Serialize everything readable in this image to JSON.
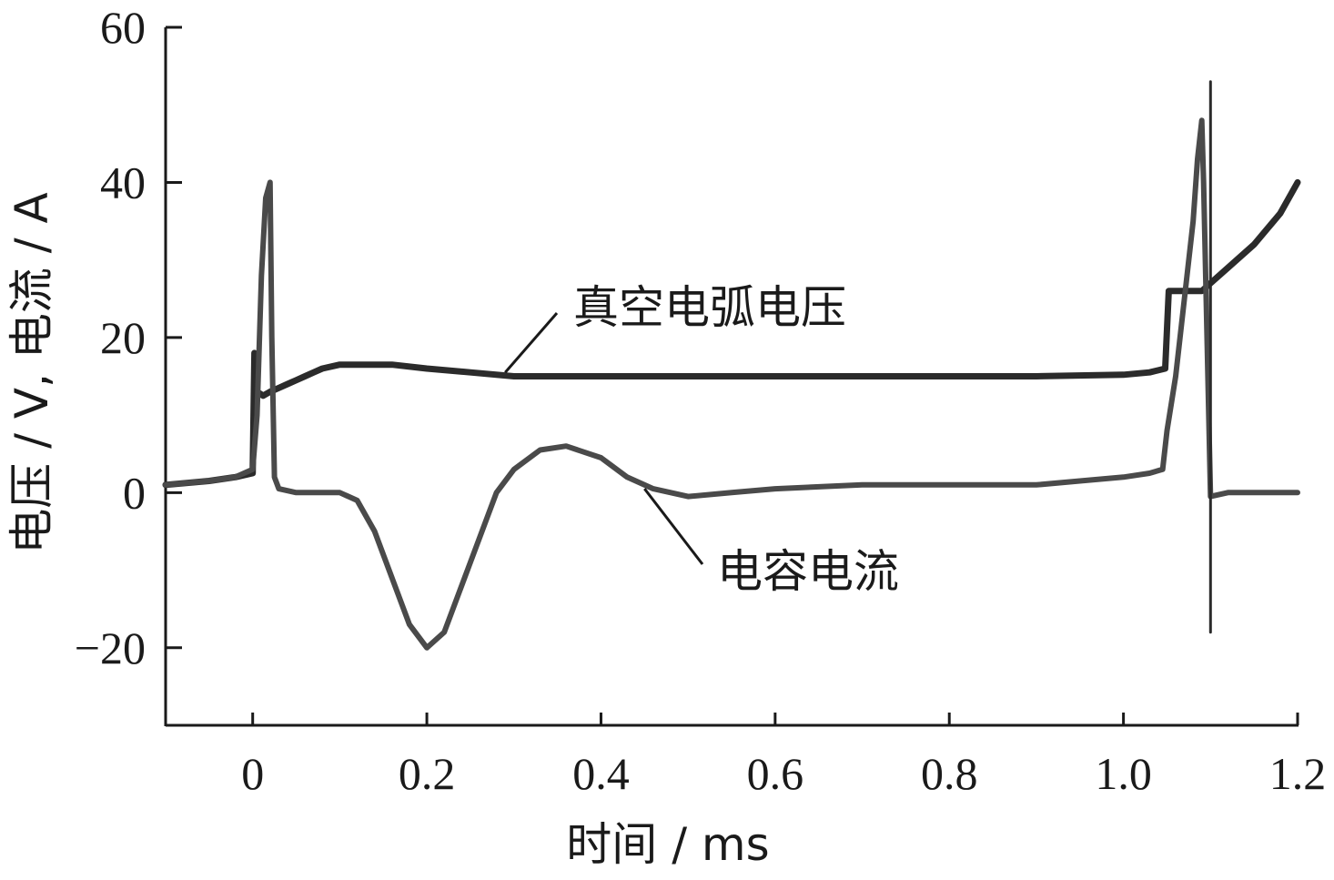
{
  "chart_data": {
    "type": "line",
    "xlabel": "时间 / ms",
    "ylabel": "电压 / V, 电流 / A",
    "xlim": [
      -0.1,
      1.2
    ],
    "ylim": [
      -30,
      60
    ],
    "xticks": [
      0,
      0.2,
      0.4,
      0.6,
      0.8,
      1.0,
      1.2
    ],
    "xtick_labels": [
      "0",
      "0.2",
      "0.4",
      "0.6",
      "0.8",
      "1.0",
      "1.2"
    ],
    "yticks": [
      -20,
      0,
      20,
      40,
      60
    ],
    "ytick_labels": [
      "−20",
      "0",
      "20",
      "40",
      "60"
    ],
    "grid": false,
    "colors": {
      "voltage": "#2b2b2b",
      "current": "#4a4a4a",
      "axis": "#1a1a1a"
    },
    "series": [
      {
        "name": "真空电弧电压",
        "x": [
          -0.1,
          -0.05,
          -0.02,
          0.0,
          0.002,
          0.005,
          0.012,
          0.02,
          0.03,
          0.04,
          0.05,
          0.06,
          0.07,
          0.08,
          0.1,
          0.13,
          0.16,
          0.2,
          0.25,
          0.3,
          0.4,
          0.5,
          0.6,
          0.7,
          0.8,
          0.9,
          1.0,
          1.03,
          1.048,
          1.052,
          1.06,
          1.07,
          1.08,
          1.09,
          1.1,
          1.12,
          1.15,
          1.18,
          1.2
        ],
        "y": [
          1,
          1.5,
          2,
          2.5,
          18,
          13,
          12.5,
          13,
          13.5,
          14,
          14.5,
          15,
          15.5,
          16,
          16.5,
          16.5,
          16.5,
          16,
          15.5,
          15,
          15,
          15,
          15,
          15,
          15,
          15,
          15.2,
          15.5,
          16,
          26,
          26,
          26,
          26,
          26,
          27,
          29,
          32,
          36,
          40
        ]
      },
      {
        "name": "电容电流",
        "x": [
          -0.1,
          -0.05,
          -0.02,
          0.0,
          0.005,
          0.01,
          0.015,
          0.02,
          0.022,
          0.025,
          0.03,
          0.05,
          0.1,
          0.12,
          0.14,
          0.16,
          0.18,
          0.2,
          0.22,
          0.25,
          0.28,
          0.3,
          0.33,
          0.36,
          0.4,
          0.43,
          0.46,
          0.5,
          0.55,
          0.6,
          0.7,
          0.8,
          0.9,
          0.95,
          1.0,
          1.03,
          1.045,
          1.05,
          1.06,
          1.07,
          1.08,
          1.085,
          1.09,
          1.092,
          1.1,
          1.12,
          1.15,
          1.2
        ],
        "y": [
          1,
          1.5,
          2,
          3,
          10,
          28,
          38,
          40,
          20,
          2,
          0.5,
          0,
          0,
          -1,
          -5,
          -11,
          -17,
          -20,
          -18,
          -9,
          0,
          3,
          5.5,
          6,
          4.5,
          2,
          0.5,
          -0.5,
          0,
          0.5,
          1,
          1,
          1,
          1.5,
          2,
          2.5,
          3,
          8,
          15,
          25,
          35,
          43,
          48,
          40,
          -0.5,
          0,
          0,
          0
        ]
      },
      {
        "name": "",
        "x": [
          1.1,
          1.1,
          1.1,
          1.1
        ],
        "y": [
          53,
          -18,
          30,
          25
        ]
      }
    ],
    "annotations": [
      {
        "text": "真空电弧电压",
        "x": 0.29,
        "y": 15.5
      },
      {
        "text": "电容电流",
        "x": 0.45,
        "y": 0.5
      }
    ]
  }
}
